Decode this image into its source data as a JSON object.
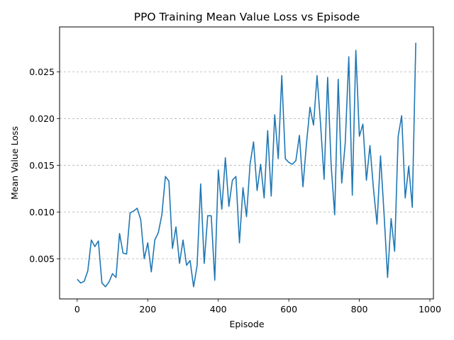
{
  "chart_data": {
    "type": "line",
    "title": "PPO Training Mean Value Loss vs Episode",
    "xlabel": "Episode",
    "ylabel": "Mean Value Loss",
    "xlim": [
      -50,
      1010
    ],
    "ylim": [
      0.0007,
      0.0298
    ],
    "xticks": [
      0,
      200,
      400,
      600,
      800,
      1000
    ],
    "xtick_labels": [
      "0",
      "200",
      "400",
      "600",
      "800",
      "1000"
    ],
    "yticks": [
      0.005,
      0.01,
      0.015,
      0.02,
      0.025
    ],
    "ytick_labels": [
      "0.005",
      "0.010",
      "0.015",
      "0.020",
      "0.025"
    ],
    "grid": "y-dashed",
    "line_color": "#1f77b4",
    "series": [
      {
        "x": [
          0,
          10,
          20,
          30,
          40,
          50,
          60,
          70,
          80,
          90,
          100,
          110,
          120,
          130,
          140,
          150,
          160,
          170,
          180,
          190,
          200,
          210,
          220,
          230,
          240,
          250,
          260,
          270,
          280,
          290,
          300,
          310,
          320,
          330,
          340,
          350,
          360,
          370,
          380,
          390,
          400,
          410,
          420,
          430,
          440,
          450,
          460,
          470,
          480,
          490,
          500,
          510,
          520,
          530,
          540,
          550,
          560,
          570,
          580,
          590,
          600,
          610,
          620,
          630,
          640,
          650,
          660,
          670,
          680,
          690,
          700,
          710,
          720,
          730,
          740,
          750,
          760,
          770,
          780,
          790,
          800,
          810,
          820,
          830,
          840,
          850,
          860,
          870,
          880,
          890,
          900,
          910,
          920,
          930,
          940,
          950,
          960
        ],
        "y": [
          0.0028,
          0.0024,
          0.0026,
          0.0037,
          0.007,
          0.0063,
          0.0069,
          0.0024,
          0.002,
          0.0025,
          0.0034,
          0.003,
          0.0077,
          0.0056,
          0.0055,
          0.0099,
          0.0101,
          0.0104,
          0.0092,
          0.005,
          0.0067,
          0.0036,
          0.007,
          0.0078,
          0.0097,
          0.0138,
          0.0133,
          0.0061,
          0.0084,
          0.0045,
          0.007,
          0.0043,
          0.0048,
          0.002,
          0.0043,
          0.013,
          0.0045,
          0.0096,
          0.0096,
          0.0027,
          0.0145,
          0.0103,
          0.0158,
          0.0106,
          0.0134,
          0.0138,
          0.0067,
          0.0126,
          0.0095,
          0.0151,
          0.0175,
          0.0123,
          0.0151,
          0.0115,
          0.0187,
          0.0117,
          0.0204,
          0.0157,
          0.0246,
          0.0157,
          0.0153,
          0.0151,
          0.0155,
          0.0182,
          0.0127,
          0.0173,
          0.0212,
          0.0193,
          0.0246,
          0.0194,
          0.0135,
          0.0244,
          0.015,
          0.0097,
          0.0242,
          0.0131,
          0.0174,
          0.0266,
          0.0118,
          0.0273,
          0.0181,
          0.0194,
          0.0134,
          0.0171,
          0.0125,
          0.0087,
          0.016,
          0.0098,
          0.003,
          0.0093,
          0.0058,
          0.0181,
          0.0203,
          0.0115,
          0.0149,
          0.0105,
          0.0281
        ]
      }
    ]
  }
}
